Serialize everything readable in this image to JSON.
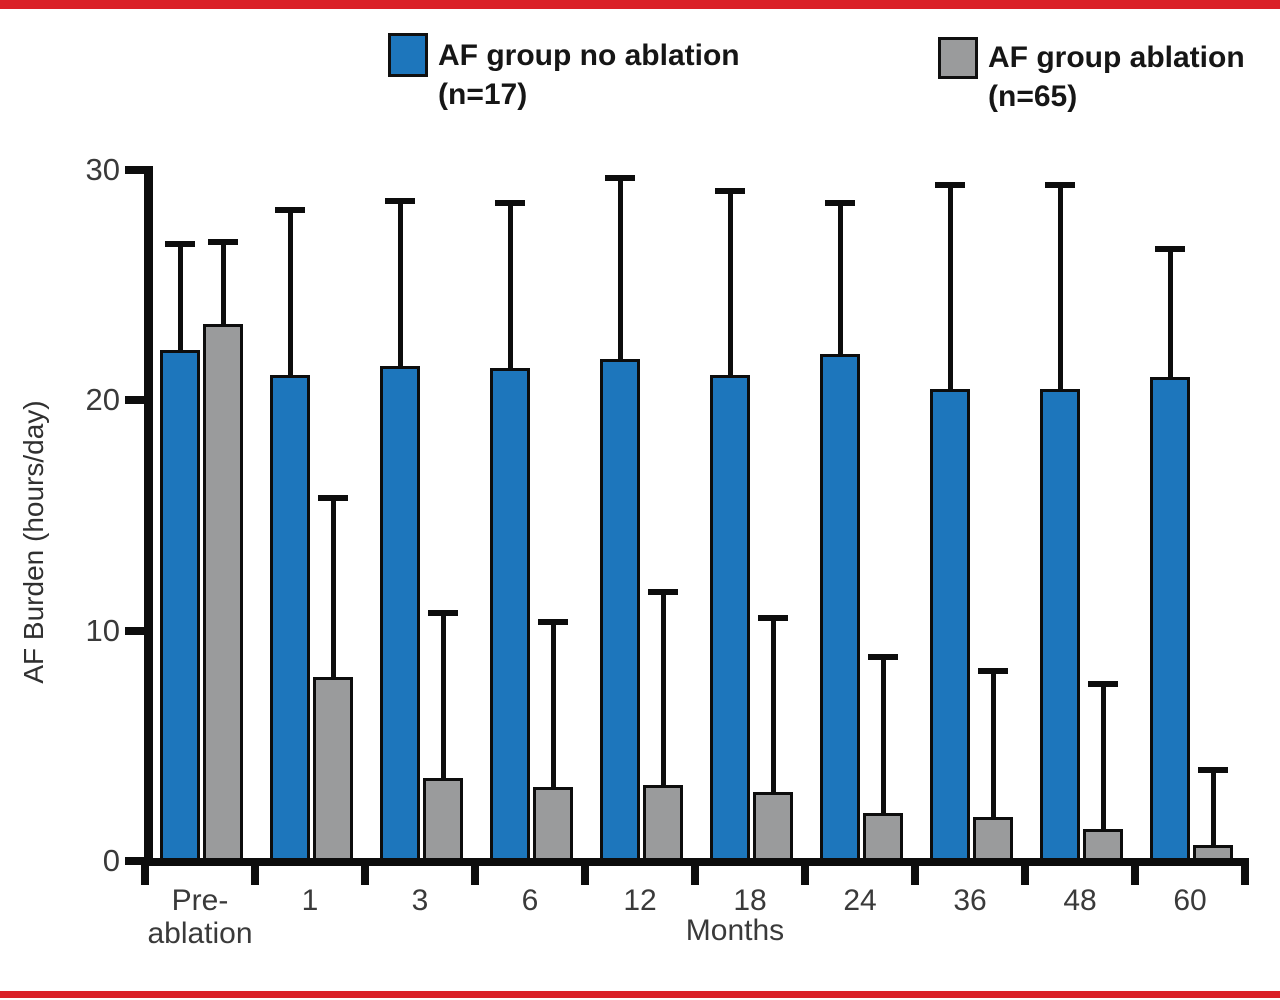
{
  "page": {
    "background": "#ffffff",
    "accent_border_color": "#da2128"
  },
  "legend": {
    "items": [
      {
        "label_line1": "AF group no ablation",
        "label_line2": "(n=17)",
        "color": "#1d76bc"
      },
      {
        "label_line1": "AF group ablation",
        "label_line2": "(n=65)",
        "color": "#9a9b9c"
      }
    ]
  },
  "chart_data": {
    "type": "bar",
    "title": "",
    "xlabel": "Months",
    "ylabel": "AF Burden (hours/day)",
    "ylim": [
      0,
      30
    ],
    "yticks": [
      0,
      10,
      20,
      30
    ],
    "grid": false,
    "legend_position": "top",
    "categories": [
      "Pre-ablation",
      "1",
      "3",
      "6",
      "12",
      "18",
      "24",
      "36",
      "48",
      "60"
    ],
    "series": [
      {
        "name": "AF group no ablation (n=17)",
        "color": "#1d76bc",
        "values": [
          22.2,
          21.1,
          21.5,
          21.4,
          21.8,
          21.1,
          22.0,
          20.5,
          20.5,
          21.0
        ],
        "error_upper": [
          4.7,
          7.3,
          7.3,
          7.3,
          8.0,
          8.1,
          6.7,
          9.0,
          9.0,
          5.7
        ]
      },
      {
        "name": "AF group ablation (n=65)",
        "color": "#9a9b9c",
        "values": [
          23.3,
          8.0,
          3.6,
          3.2,
          3.3,
          3.0,
          2.1,
          1.9,
          1.4,
          0.7
        ],
        "error_upper": [
          3.7,
          7.9,
          7.3,
          7.3,
          8.5,
          7.7,
          6.9,
          6.5,
          6.4,
          3.4
        ]
      }
    ]
  }
}
